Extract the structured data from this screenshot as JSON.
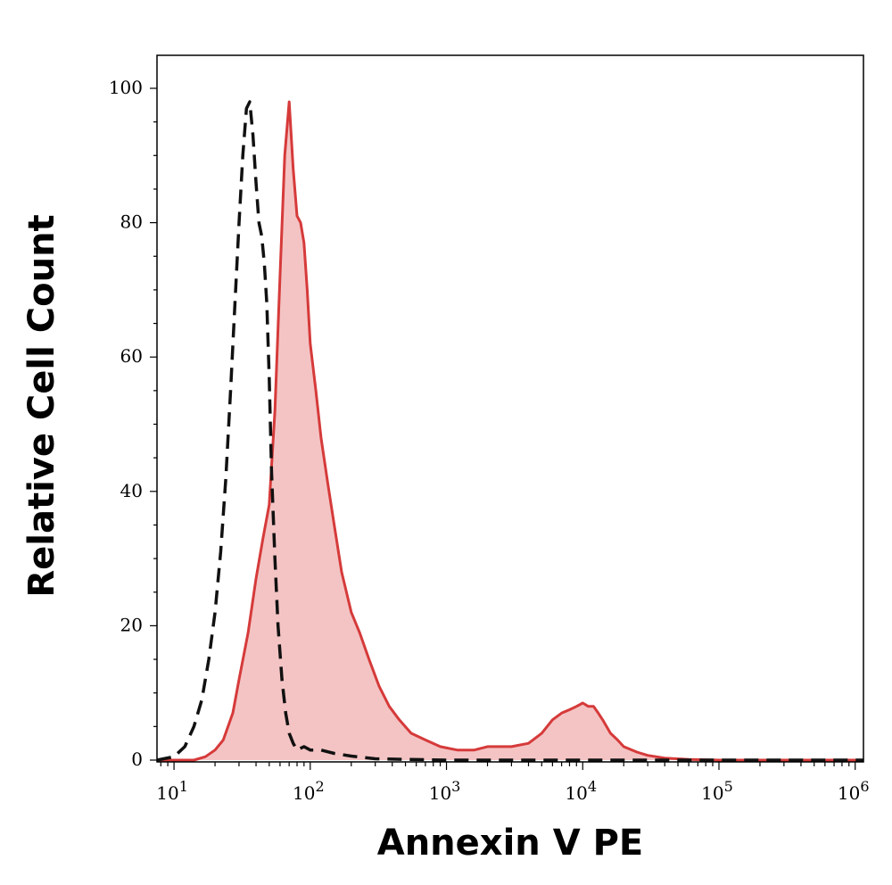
{
  "chart_data": {
    "type": "area",
    "xlabel": "Annexin V PE",
    "ylabel": "Relative Cell Count",
    "x_scale": "log",
    "xlim": [
      7.5,
      1150000
    ],
    "ylim": [
      0,
      105
    ],
    "grid": false,
    "y_ticks": [
      {
        "value": 0,
        "label": "0"
      },
      {
        "value": 20,
        "label": "20"
      },
      {
        "value": 40,
        "label": "40"
      },
      {
        "value": 60,
        "label": "60"
      },
      {
        "value": 80,
        "label": "80"
      },
      {
        "value": 100,
        "label": "100"
      }
    ],
    "x_ticks": [
      {
        "value": 10,
        "base": "10",
        "exp": "1"
      },
      {
        "value": 100,
        "base": "10",
        "exp": "2"
      },
      {
        "value": 1000,
        "base": "10",
        "exp": "3"
      },
      {
        "value": 10000,
        "base": "10",
        "exp": "4"
      },
      {
        "value": 100000,
        "base": "10",
        "exp": "5"
      },
      {
        "value": 1000000,
        "base": "10",
        "exp": "6"
      }
    ],
    "series": [
      {
        "style": "filled",
        "color": "#d63a3a",
        "fill": "#f4c4c4",
        "x": [
          7.5,
          14,
          17,
          20,
          23,
          27,
          30,
          35,
          40,
          45,
          50,
          55,
          60,
          65,
          70,
          75,
          80,
          85,
          90,
          95,
          100,
          110,
          120,
          135,
          150,
          170,
          200,
          230,
          270,
          320,
          380,
          450,
          550,
          700,
          900,
          1200,
          1600,
          2000,
          2500,
          3000,
          4000,
          5000,
          6000,
          7000,
          8000,
          9000,
          10000,
          11000,
          12000,
          13000,
          14000,
          16000,
          18000,
          20000,
          25000,
          30000,
          40000,
          60000,
          100000,
          200000,
          500000,
          1150000
        ],
        "y": [
          0,
          0,
          0.5,
          1.5,
          3,
          7,
          12,
          19,
          27,
          33,
          38,
          52,
          72,
          90,
          98,
          88,
          81,
          80,
          77,
          70,
          62,
          55,
          48,
          41,
          35,
          28,
          22,
          19,
          15,
          11,
          8,
          6,
          4,
          3,
          2,
          1.5,
          1.5,
          2,
          2,
          2,
          2.5,
          4,
          6,
          7,
          7.5,
          8,
          8.5,
          8,
          8,
          7,
          6,
          4,
          3,
          2,
          1.2,
          0.7,
          0.3,
          0.1,
          0,
          0,
          0,
          0
        ]
      },
      {
        "style": "dashed",
        "color": "#111111",
        "x": [
          7.5,
          10,
          12,
          14,
          16,
          18,
          20,
          22,
          24,
          26,
          28,
          30,
          32,
          34,
          36,
          38,
          40,
          42,
          44,
          46,
          48,
          50,
          52,
          55,
          58,
          62,
          66,
          70,
          75,
          80,
          90,
          100,
          120,
          150,
          200,
          300,
          500,
          1000,
          3000,
          10000,
          40000,
          1150000
        ],
        "y": [
          0,
          0.5,
          2,
          5,
          9,
          15,
          22,
          31,
          42,
          55,
          68,
          80,
          90,
          97,
          98,
          93,
          86,
          80,
          78,
          74,
          68,
          57,
          43,
          30,
          20,
          12,
          7,
          4,
          2.5,
          1.5,
          2,
          1.5,
          1.5,
          1,
          0.6,
          0.2,
          0.1,
          0,
          0,
          0,
          0,
          0
        ]
      }
    ]
  }
}
